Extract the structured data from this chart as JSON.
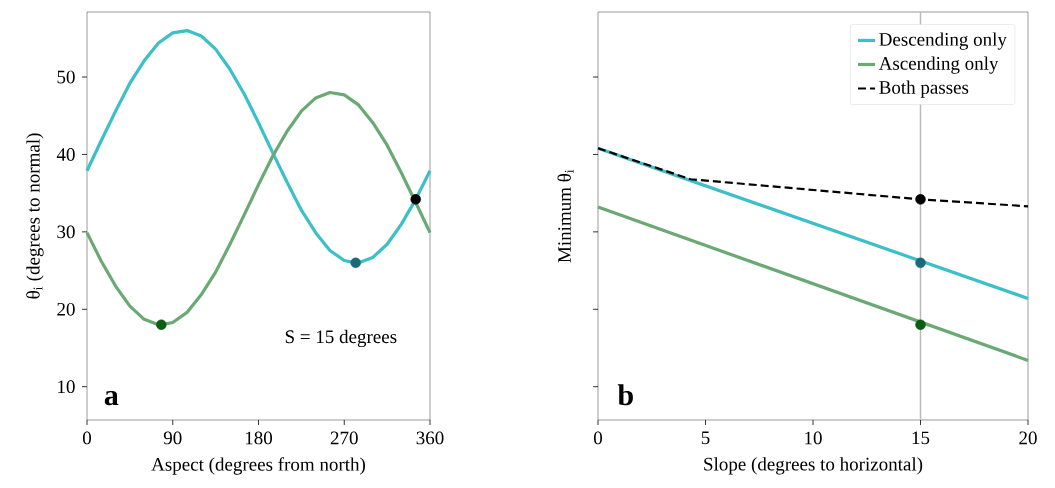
{
  "chart_data": [
    {
      "type": "line",
      "xlabel": "Aspect (degrees from north)",
      "ylabel": "θ$_{i}$ (degrees to normal)",
      "xlim": [
        0,
        360
      ],
      "ylim": [
        5.7,
        58.4
      ],
      "xticks": [
        0,
        90,
        180,
        270,
        360
      ],
      "yticks": [
        10,
        20,
        30,
        40,
        50
      ],
      "annotations": [
        "S = 15 degrees",
        "a"
      ],
      "series": [
        {
          "color": "#3bbfc8",
          "x": [
            0,
            15,
            30,
            45,
            60,
            75,
            90,
            105,
            120,
            135,
            150,
            165,
            180,
            195,
            210,
            225,
            240,
            255,
            270,
            282,
            285,
            300,
            315,
            330,
            345,
            360
          ],
          "values": [
            37.9,
            41.8,
            45.6,
            49.2,
            52.1,
            54.4,
            55.7,
            56.0,
            55.3,
            53.6,
            51.0,
            47.8,
            44.1,
            40.2,
            36.4,
            32.8,
            29.9,
            27.6,
            26.3,
            26.0,
            26.0,
            26.7,
            28.4,
            31.0,
            34.2,
            37.9
          ]
        },
        {
          "color": "#6aa874",
          "x": [
            0,
            15,
            30,
            45,
            60,
            75,
            78,
            90,
            105,
            120,
            135,
            150,
            165,
            180,
            195,
            210,
            225,
            240,
            255,
            270,
            285,
            300,
            315,
            330,
            345,
            360
          ],
          "values": [
            29.9,
            26.2,
            23.0,
            20.4,
            18.7,
            18.0,
            18.0,
            18.3,
            19.6,
            21.9,
            24.8,
            28.4,
            32.2,
            36.1,
            39.8,
            43.0,
            45.6,
            47.3,
            48.0,
            47.7,
            46.4,
            44.1,
            41.2,
            37.6,
            33.8,
            29.9
          ]
        },
        {
          "type": "scatter",
          "x": [
            78,
            282,
            345
          ],
          "values": [
            18.0,
            26.0,
            34.2
          ],
          "colors": [
            "#0b5e14",
            "#1a6b78",
            "#000000"
          ]
        }
      ]
    },
    {
      "type": "line",
      "xlabel": "Slope (degrees to horizontal)",
      "ylabel": "Minimum θ$_{i}$",
      "xlim": [
        0,
        20
      ],
      "ylim": [
        5.7,
        58.4
      ],
      "xticks": [
        0,
        5,
        10,
        15,
        20
      ],
      "yticks": [
        {
          "value": 10,
          "label": null
        },
        {
          "value": 20,
          "label": null
        },
        {
          "value": 30,
          "label": null
        },
        {
          "value": 40,
          "label": null
        },
        {
          "value": 50,
          "label": null
        }
      ],
      "tick_labels": "x",
      "legend": "top right",
      "annotations": [
        "b"
      ],
      "ref_lines": [
        {
          "axis": "x",
          "value": 15,
          "color": "#bbbbbb"
        }
      ],
      "series": [
        {
          "name": "Descending only",
          "color": "#3bbfc8",
          "x": [
            0,
            20
          ],
          "values": [
            40.8,
            21.4
          ]
        },
        {
          "name": "Ascending only",
          "color": "#6aa874",
          "x": [
            0,
            20
          ],
          "values": [
            33.2,
            13.4
          ]
        },
        {
          "name": "Both passes",
          "color": "#000000",
          "line_style": "dashed",
          "x": [
            0,
            4.3,
            15,
            20
          ],
          "values": [
            40.8,
            36.8,
            34.2,
            33.3
          ]
        },
        {
          "type": "scatter",
          "x": [
            15,
            15,
            15
          ],
          "values": [
            34.2,
            26.0,
            18.0
          ],
          "colors": [
            "#000000",
            "#1a6b78",
            "#0b5e14"
          ]
        }
      ]
    }
  ]
}
